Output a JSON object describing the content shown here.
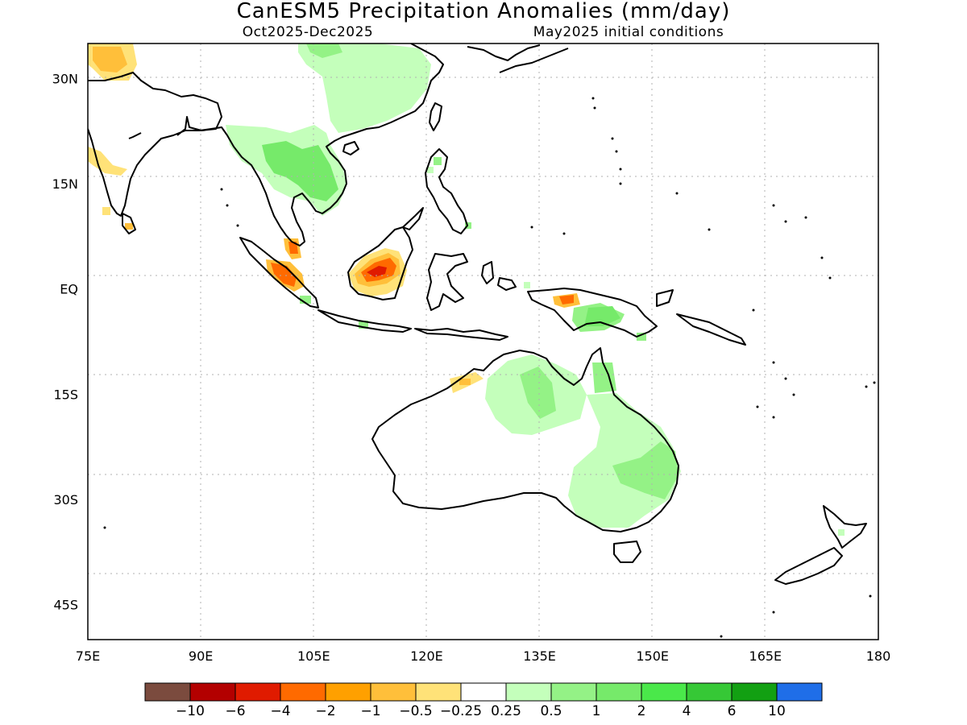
{
  "title": "CanESM5 Precipitation Anomalies (mm/day)",
  "period": "Oct2025-Dec2025",
  "init_conditions": "May2025 initial conditions",
  "map": {
    "lon_range": [
      75,
      180
    ],
    "lat_range": [
      -50,
      35
    ],
    "lon_ticks": [
      {
        "value": 75,
        "label": "75E"
      },
      {
        "value": 90,
        "label": "90E"
      },
      {
        "value": 105,
        "label": "105E"
      },
      {
        "value": 120,
        "label": "120E"
      },
      {
        "value": 135,
        "label": "135E"
      },
      {
        "value": 150,
        "label": "150E"
      },
      {
        "value": 165,
        "label": "165E"
      },
      {
        "value": 180,
        "label": "180"
      }
    ],
    "lat_ticks": [
      {
        "value": 30,
        "label": "30N"
      },
      {
        "value": 15,
        "label": "15N"
      },
      {
        "value": 0,
        "label": "EQ"
      },
      {
        "value": -15,
        "label": "15S"
      },
      {
        "value": -30,
        "label": "30S"
      },
      {
        "value": -45,
        "label": "45S"
      }
    ],
    "grid": "dotted"
  },
  "colorbar": {
    "colors": [
      "#7b4b3e",
      "#b30000",
      "#e01b00",
      "#ff6a00",
      "#ffa000",
      "#ffbf3a",
      "#ffe278",
      "#ffffff",
      "#c4ffbb",
      "#94f286",
      "#76ea6a",
      "#4ae84a",
      "#36c836",
      "#12a012",
      "#1f6ee8"
    ],
    "labels": [
      "-10",
      "-6",
      "-4",
      "-2",
      "-1",
      "-0.5",
      "-0.25",
      "0.25",
      "0.5",
      "1",
      "2",
      "4",
      "6",
      "10"
    ]
  }
}
